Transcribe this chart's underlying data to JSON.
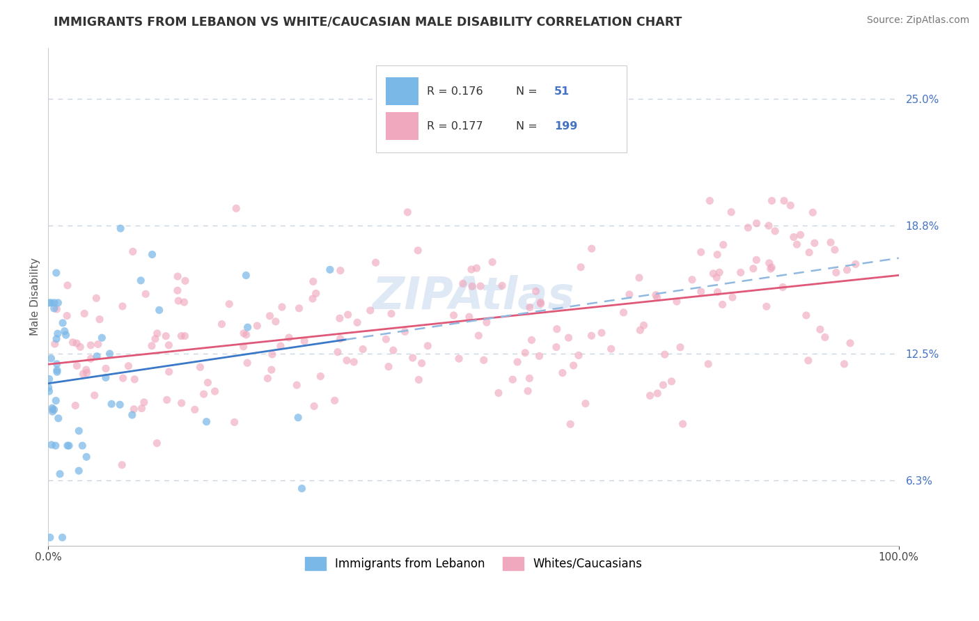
{
  "title": "IMMIGRANTS FROM LEBANON VS WHITE/CAUCASIAN MALE DISABILITY CORRELATION CHART",
  "source": "Source: ZipAtlas.com",
  "ylabel": "Male Disability",
  "xlim": [
    0,
    100
  ],
  "ylim": [
    3.1,
    27.5
  ],
  "yticks": [
    6.3,
    12.5,
    18.8,
    25.0
  ],
  "ytick_labels": [
    "6.3%",
    "12.5%",
    "18.8%",
    "25.0%"
  ],
  "xticks": [
    0,
    100
  ],
  "xtick_labels": [
    "0.0%",
    "100.0%"
  ],
  "legend_labels": [
    "Immigrants from Lebanon",
    "Whites/Caucasians"
  ],
  "series1_color": "#7ab8e8",
  "series2_color": "#f0a8be",
  "trend1_solid_color": "#3a78c8",
  "trend1_dashed_color": "#90b8e0",
  "trend2_color": "#e05878",
  "background_color": "#ffffff",
  "grid_color": "#c8d4e0",
  "watermark": "ZIPAtlas",
  "title_fontsize": 12.5,
  "axis_label_fontsize": 11,
  "tick_fontsize": 11,
  "legend_fontsize": 12,
  "source_fontsize": 10,
  "tick_color": "#4472c4",
  "legend_r1": "R = 0.176",
  "legend_n1": "N =  51",
  "legend_r2": "R = 0.177",
  "legend_n2": "N = 199",
  "n1_val": "51",
  "n2_val": "199"
}
